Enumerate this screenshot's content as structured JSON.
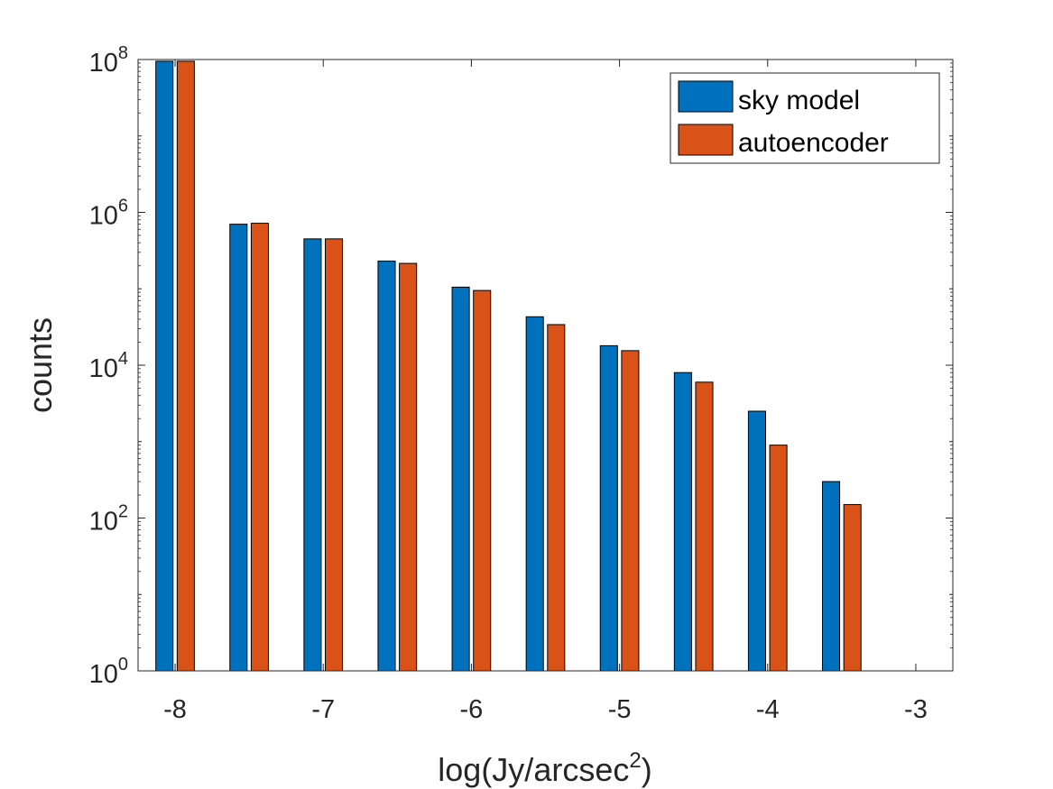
{
  "chart_data": {
    "type": "bar",
    "xlabel": "log(Jy/arcsec",
    "xlabel_superscript": "2",
    "xlabel_suffix": ")",
    "ylabel": "counts",
    "y_scale": "log",
    "xlim": [
      -8.25,
      -2.75
    ],
    "ylim": [
      1,
      100000000
    ],
    "x_ticks": [
      -8,
      -7,
      -6,
      -5,
      -4,
      -3
    ],
    "x_tick_labels": [
      "-8",
      "-7",
      "-6",
      "-5",
      "-4",
      "-3"
    ],
    "y_ticks": [
      1,
      100,
      10000,
      1000000,
      100000000
    ],
    "y_tick_labels": [
      {
        "base": "10",
        "exp": "0"
      },
      {
        "base": "10",
        "exp": "2"
      },
      {
        "base": "10",
        "exp": "4"
      },
      {
        "base": "10",
        "exp": "6"
      },
      {
        "base": "10",
        "exp": "8"
      }
    ],
    "bin_centers": [
      -8,
      -7.5,
      -7,
      -6.5,
      -6,
      -5.5,
      -5,
      -4.5,
      -4,
      -3.5,
      -3
    ],
    "series": [
      {
        "name": "sky model",
        "color": "#0072BD",
        "values": [
          95000000,
          700000,
          450000,
          230000,
          105000,
          43000,
          18000,
          8000,
          2500,
          300,
          0
        ]
      },
      {
        "name": "autoencoder",
        "color": "#D95319",
        "values": [
          95000000,
          720000,
          450000,
          215000,
          95000,
          34000,
          15500,
          6000,
          900,
          150,
          0
        ]
      }
    ],
    "legend": {
      "placement": "top-right"
    },
    "grid": false
  }
}
